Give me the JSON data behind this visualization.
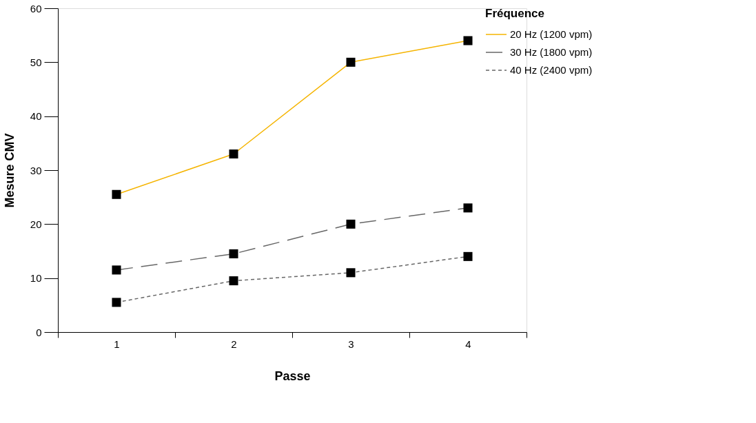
{
  "chart_data": {
    "type": "line",
    "xlabel": "Passe",
    "ylabel": "Mesure CMV",
    "legend_title": "Fréquence",
    "categories": [
      "1",
      "2",
      "3",
      "4"
    ],
    "series": [
      {
        "name": "20 Hz (1200 vpm)",
        "color": "#f5b400",
        "line_style": "solid",
        "values": [
          25.5,
          33,
          50,
          54
        ]
      },
      {
        "name": "30 Hz (1800 vpm)",
        "color": "#666666",
        "line_style": "dashed",
        "values": [
          11.5,
          14.5,
          20,
          23
        ]
      },
      {
        "name": "40 Hz (2400 vpm)",
        "color": "#666666",
        "line_style": "dotted",
        "values": [
          5.5,
          9.5,
          11,
          14
        ]
      }
    ],
    "ylim": [
      0,
      60
    ],
    "yticks": [
      0,
      10,
      20,
      30,
      40,
      50,
      60
    ],
    "grid": false,
    "legend": "top right",
    "marker": "square"
  }
}
